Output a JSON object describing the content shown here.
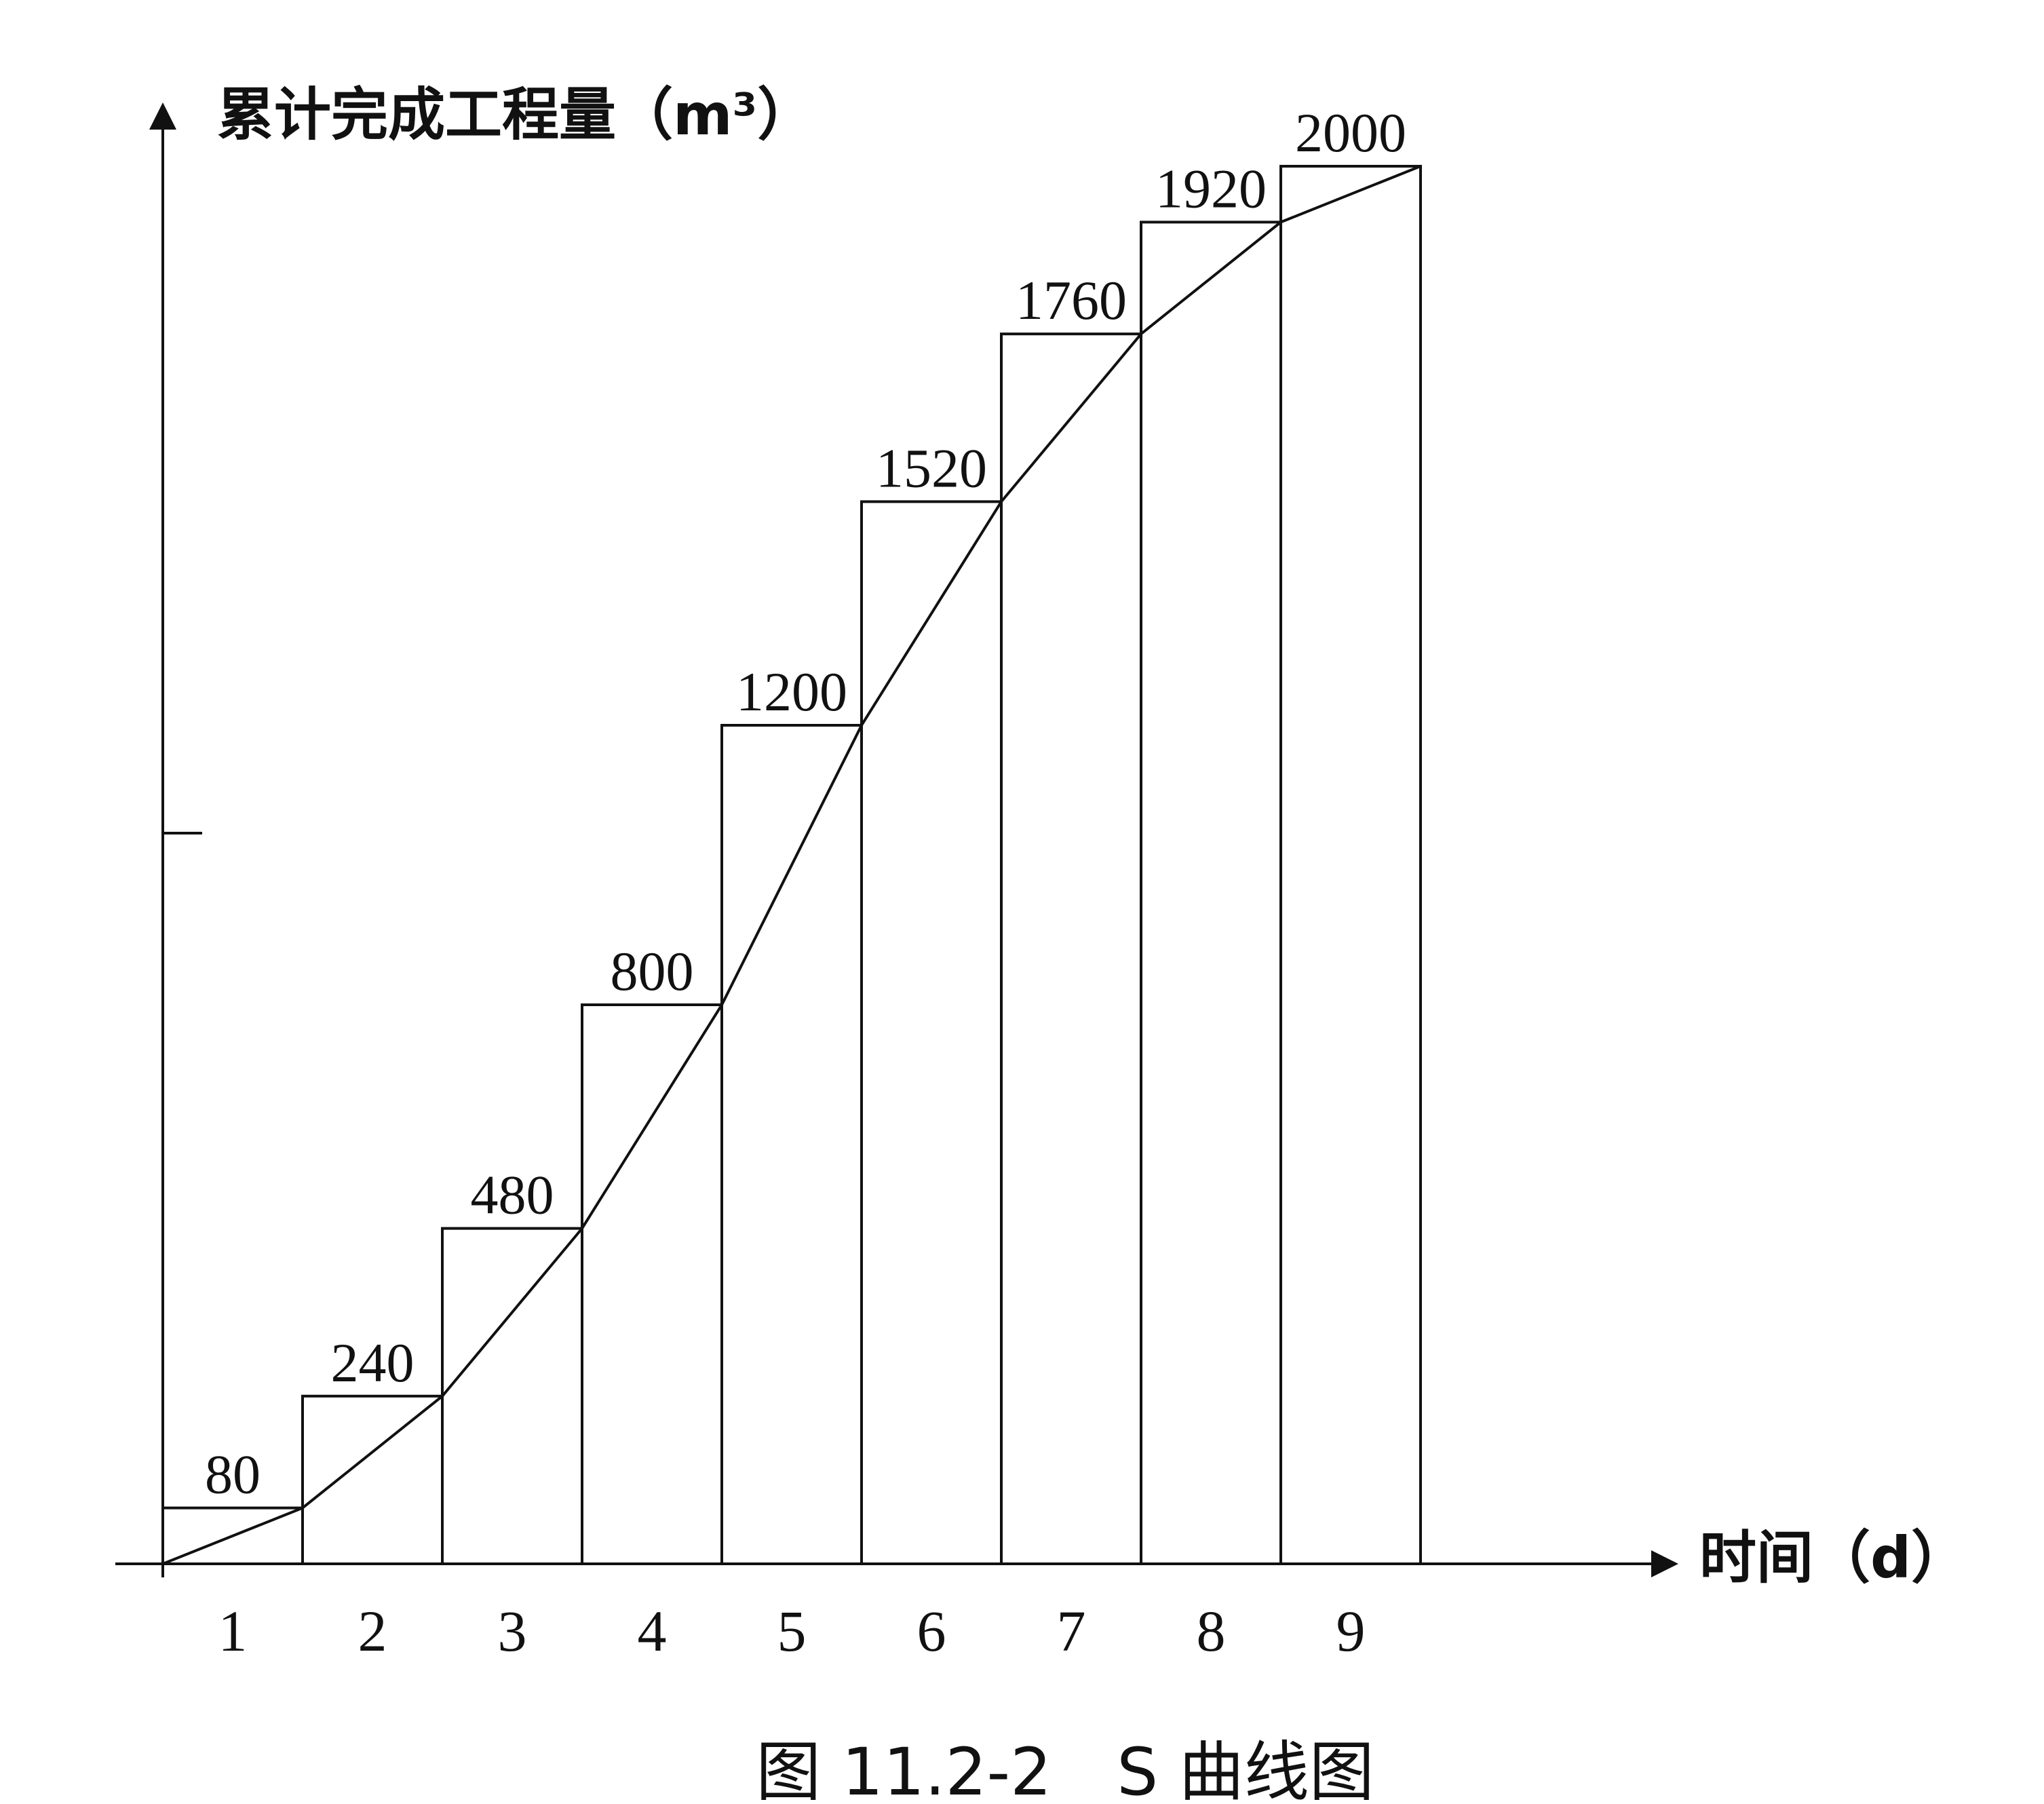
{
  "chart_data": {
    "type": "bar",
    "title": "图 11.2-2　S 曲线图",
    "ylabel": "累计完成工程量（m³）",
    "xlabel": "时间（d）",
    "categories": [
      "1",
      "2",
      "3",
      "4",
      "5",
      "6",
      "7",
      "8",
      "9"
    ],
    "values": [
      80,
      240,
      480,
      800,
      1200,
      1520,
      1760,
      1920,
      2000
    ],
    "data_labels": [
      "80",
      "240",
      "480",
      "800",
      "1200",
      "1520",
      "1760",
      "1920",
      "2000"
    ],
    "ylim": [
      0,
      2000
    ],
    "curve": {
      "type": "line",
      "x": [
        0,
        1,
        2,
        3,
        4,
        5,
        6,
        7,
        8,
        9
      ],
      "y": [
        0,
        80,
        240,
        480,
        800,
        1200,
        1520,
        1760,
        1920,
        2000
      ]
    },
    "grid": false,
    "legend": "none"
  }
}
